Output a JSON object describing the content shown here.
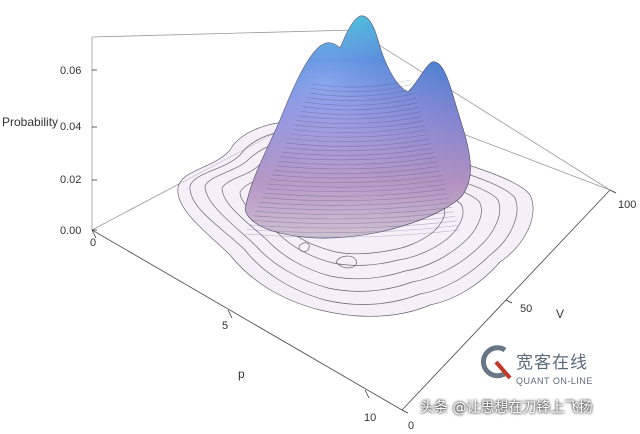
{
  "chart_data": {
    "type": "surface3d",
    "title": "",
    "zlabel": "Probability",
    "xlabel": "p",
    "ylabel": "V",
    "z_ticks": [
      "0.00",
      "0.02",
      "0.04",
      "0.06"
    ],
    "p_ticks": [
      "0",
      "5",
      "10"
    ],
    "v_ticks": [
      "0",
      "50",
      "100"
    ],
    "xlim": [
      0,
      10
    ],
    "ylim": [
      0,
      100
    ],
    "zlim": [
      0,
      0.07
    ],
    "peaks": [
      {
        "p": 3.0,
        "V": 65,
        "probability": 0.064
      },
      {
        "p": 2.6,
        "V": 55,
        "probability": 0.058
      },
      {
        "p": 2.2,
        "V": 90,
        "probability": 0.045
      }
    ],
    "surface_colors": [
      "#f0e6f2",
      "#c9a6d8",
      "#7f8ee8",
      "#3f7fe6",
      "#38b8ea"
    ]
  },
  "watermark": {
    "cn": "宽客在线",
    "en": "QUANT ON-LINE"
  },
  "credit": "头条 @让思想在刀锋上飞扬"
}
